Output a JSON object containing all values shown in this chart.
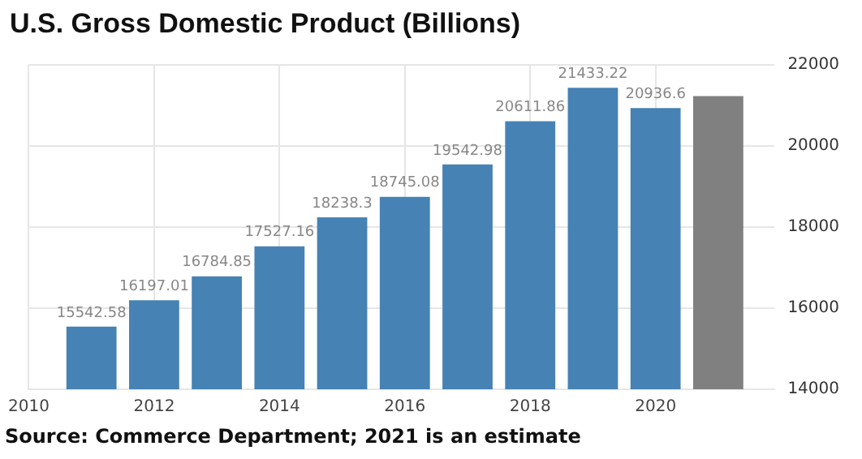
{
  "chart_data": {
    "type": "bar",
    "title": "U.S. Gross Domestic Product (Billions)",
    "x": [
      2011,
      2012,
      2013,
      2014,
      2015,
      2016,
      2017,
      2018,
      2019,
      2020,
      2021
    ],
    "values": [
      15542.58,
      16197.01,
      16784.85,
      17527.16,
      18238.3,
      18745.08,
      19542.98,
      20611.86,
      21433.22,
      20936.6,
      21230
    ],
    "value_labels": [
      "15542.58",
      "16197.01",
      "16784.85",
      "17527.16",
      "18238.3",
      "18745.08",
      "19542.98",
      "20611.86",
      "21433.22",
      "20936.6",
      null
    ],
    "colors": [
      "#4682b4",
      "#4682b4",
      "#4682b4",
      "#4682b4",
      "#4682b4",
      "#4682b4",
      "#4682b4",
      "#4682b4",
      "#4682b4",
      "#4682b4",
      "#808080"
    ],
    "xlim": [
      2010,
      2021.9
    ],
    "xticks": [
      2010,
      2012,
      2014,
      2016,
      2018,
      2020
    ],
    "ylim": [
      14000,
      22000
    ],
    "yticks": [
      14000,
      16000,
      18000,
      20000,
      22000
    ],
    "grid": true,
    "legend": false,
    "annotations": [
      "Source: Commerce Department; 2021 is an estimate"
    ]
  }
}
